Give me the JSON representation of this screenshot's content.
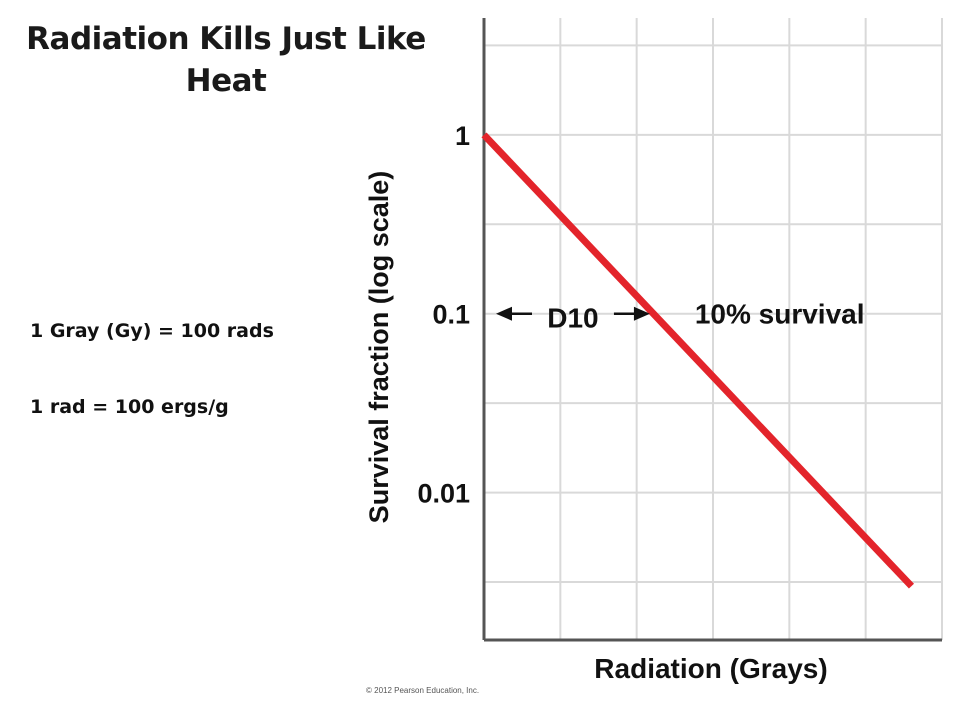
{
  "slide": {
    "title_line1": "Radiation Kills Just Like",
    "title_line2": "Heat",
    "note_1": "1 Gray (Gy) = 100 rads",
    "note_2": "1 rad = 100 ergs/g",
    "copyright": "© 2012 Pearson Education, Inc."
  },
  "colors": {
    "line": "#e3242b",
    "grid": "#d9d9d9",
    "axis": "#555555",
    "text": "#111111"
  },
  "chart_data": {
    "type": "line",
    "title": "",
    "xlabel": "Radiation (Grays)",
    "ylabel": "Survival fraction (log scale)",
    "y_scale": "log",
    "ylim": [
      0.0015,
      4.5
    ],
    "yticks": [
      {
        "value": 1,
        "label": "1"
      },
      {
        "value": 0.1,
        "label": "0.1"
      },
      {
        "value": 0.01,
        "label": "0.01"
      }
    ],
    "x_tick_labels": [],
    "x_tick_count": 6,
    "xlim": [
      0,
      6
    ],
    "grid": true,
    "series": [
      {
        "x": [
          0,
          5.6
        ],
        "y": [
          1,
          0.003
        ]
      }
    ],
    "annotations": [
      {
        "text": "D10",
        "kind": "double-arrow",
        "x_start": 0,
        "x_end": 2.2,
        "y": 0.1
      },
      {
        "text": "10% survival",
        "x": 2.5,
        "y": 0.1
      }
    ]
  }
}
